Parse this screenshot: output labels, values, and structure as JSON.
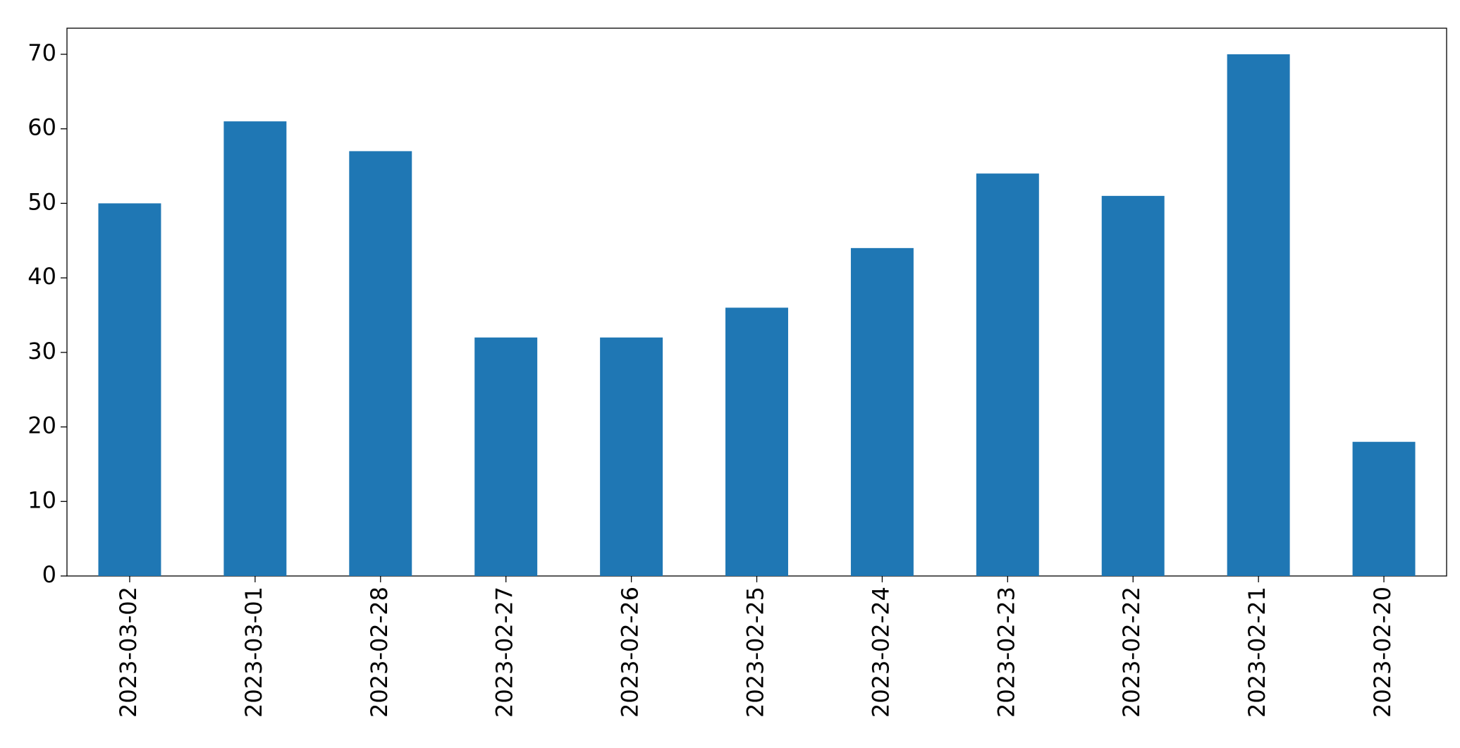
{
  "chart_data": {
    "type": "bar",
    "categories": [
      "2023-03-02",
      "2023-03-01",
      "2023-02-28",
      "2023-02-27",
      "2023-02-26",
      "2023-02-25",
      "2023-02-24",
      "2023-02-23",
      "2023-02-22",
      "2023-02-21",
      "2023-02-20"
    ],
    "values": [
      50,
      61,
      57,
      32,
      32,
      36,
      44,
      54,
      51,
      70,
      18
    ],
    "color": "#1f77b4",
    "ylim": [
      0,
      73.5
    ],
    "yticks": [
      0,
      10,
      20,
      30,
      40,
      50,
      60,
      70
    ],
    "grid": false
  }
}
